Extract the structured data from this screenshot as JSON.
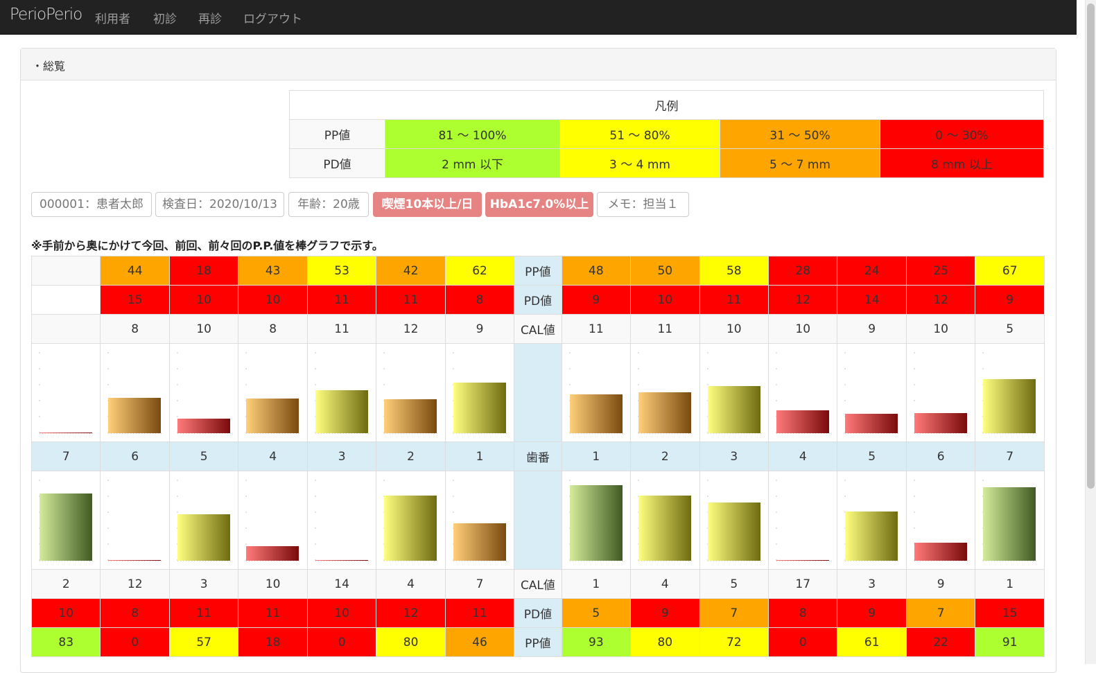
{
  "navbar": {
    "brand": "PerioPerio",
    "items": [
      "利用者",
      "初診",
      "再診",
      "ログアウト"
    ]
  },
  "panel": {
    "title": "・総覧"
  },
  "legend": {
    "title": "凡例",
    "rows": [
      {
        "label": "PP値",
        "ranges": [
          "81 ～ 100%",
          "51 ～ 80%",
          "31 ～ 50%",
          "0 ～ 30%"
        ]
      },
      {
        "label": "PD値",
        "ranges": [
          "2 mm 以下",
          "3 ～ 4 mm",
          "5 ～ 7 mm",
          "8 mm 以上"
        ]
      }
    ]
  },
  "colors": {
    "green": "#adff2f",
    "yellow": "#ffff00",
    "orange": "#ffa500",
    "red": "#ff0000",
    "tooth_bg": "#d9edf7"
  },
  "patient": {
    "id_name": "000001：患者太郎",
    "exam_date": "検査日：2020/10/13",
    "age": "年齢：20歳",
    "smoking": "喫煙10本以上/日",
    "hba1c": "HbA1c7.0%以上",
    "memo": "メモ：担当１"
  },
  "note": "※手前から奥にかけて今回、前回、前々回のP.P.値を棒グラフで示す。",
  "labels": {
    "pp": "PP値",
    "pd": "PD値",
    "cal": "CAL値",
    "tooth": "歯番"
  },
  "upper": {
    "pp": [
      "",
      "44",
      "18",
      "43",
      "53",
      "42",
      "62",
      "48",
      "50",
      "58",
      "28",
      "24",
      "25",
      "67"
    ],
    "pd": [
      "",
      "15",
      "10",
      "10",
      "11",
      "11",
      "8",
      "9",
      "10",
      "11",
      "12",
      "14",
      "12",
      "9"
    ],
    "cal": [
      "",
      "8",
      "10",
      "8",
      "11",
      "12",
      "9",
      "11",
      "11",
      "10",
      "10",
      "9",
      "10",
      "5"
    ],
    "bars": [
      0,
      44,
      18,
      43,
      53,
      42,
      62,
      48,
      50,
      58,
      28,
      24,
      25,
      67
    ]
  },
  "teeth": [
    "7",
    "6",
    "5",
    "4",
    "3",
    "2",
    "1",
    "1",
    "2",
    "3",
    "4",
    "5",
    "6",
    "7"
  ],
  "lower": {
    "bars": [
      83,
      0,
      57,
      18,
      0,
      80,
      46,
      93,
      80,
      72,
      0,
      61,
      22,
      91
    ],
    "cal": [
      "2",
      "12",
      "3",
      "10",
      "14",
      "4",
      "7",
      "1",
      "4",
      "5",
      "17",
      "3",
      "9",
      "1"
    ],
    "pd": [
      "10",
      "8",
      "11",
      "11",
      "10",
      "12",
      "11",
      "5",
      "9",
      "7",
      "8",
      "9",
      "7",
      "15"
    ],
    "pp": [
      "83",
      "0",
      "57",
      "18",
      "0",
      "80",
      "46",
      "93",
      "80",
      "72",
      "0",
      "61",
      "22",
      "91"
    ]
  }
}
